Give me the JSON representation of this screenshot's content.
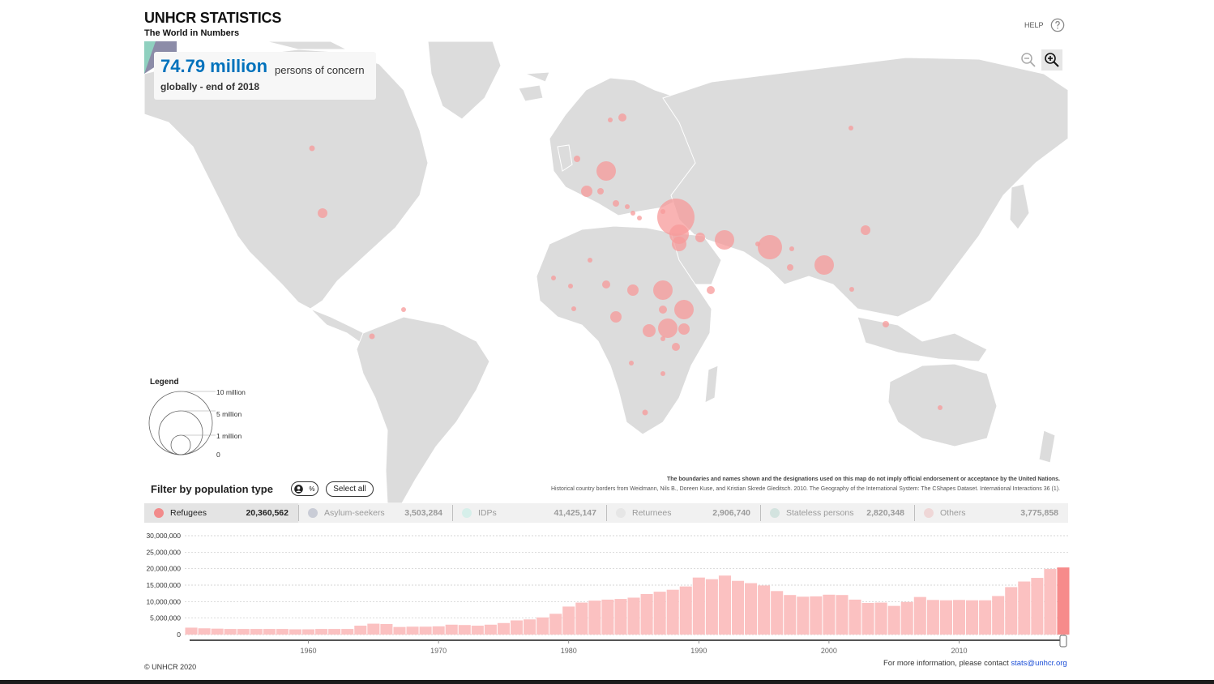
{
  "header": {
    "title": "UNHCR STATISTICS",
    "subtitle": "The World in Numbers"
  },
  "help": {
    "label": "HELP",
    "icon": "help-circle-icon"
  },
  "stat": {
    "value": "74.79 million",
    "unit": "persons of concern",
    "subtitle": "globally - end of 2018",
    "color": "#0072bc"
  },
  "zoom": {
    "out_icon": "zoom-out-icon",
    "in_icon": "zoom-in-icon"
  },
  "legend": {
    "title": "Legend",
    "labels": [
      "10 million",
      "5 million",
      "1 million",
      "0"
    ]
  },
  "disclaimer": {
    "line1": "The boundaries and names shown and the designations used on this map do not imply official endorsement or acceptance by the United Nations.",
    "line2": "Historical country borders from Weidmann, Nils B., Doreen Kuse, and Kristian Skrede Gleditsch. 2010. The Geography of the International System: The CShapes Dataset. International Interactions 36 (1)."
  },
  "filter": {
    "label": "Filter by population type",
    "toggle_left": "person-icon",
    "toggle_right": "%",
    "select_all": "Select all"
  },
  "population_types": [
    {
      "name": "Refugees",
      "value": "20,360,562",
      "color": "#f28b8b",
      "active": true
    },
    {
      "name": "Asylum-seekers",
      "value": "3,503,284",
      "color": "#c9ccd6",
      "active": false
    },
    {
      "name": "IDPs",
      "value": "41,425,147",
      "color": "#d6efea",
      "active": false
    },
    {
      "name": "Returnees",
      "value": "2,906,740",
      "color": "#e6e6e6",
      "active": false
    },
    {
      "name": "Stateless persons",
      "value": "2,820,348",
      "color": "#d3e3df",
      "active": false
    },
    {
      "name": "Others",
      "value": "3,775,858",
      "color": "#efd7d7",
      "active": false
    }
  ],
  "chart_data": {
    "type": "bar",
    "series_name": "Refugees",
    "x_start_year": 1951,
    "x_end_year": 2018,
    "x_ticks": [
      "1960",
      "1970",
      "1980",
      "1990",
      "2000",
      "2010"
    ],
    "y_ticks": [
      "30,000,000",
      "25,000,000",
      "20,000,000",
      "15,000,000",
      "10,000,000",
      "5,000,000",
      "0"
    ],
    "ylim": [
      0,
      30000000
    ],
    "values": [
      2100000,
      1900000,
      1800000,
      1700000,
      1700000,
      1700000,
      1700000,
      1700000,
      1600000,
      1600000,
      1700000,
      1700000,
      1700000,
      2700000,
      3300000,
      3200000,
      2300000,
      2400000,
      2400000,
      2500000,
      3000000,
      2900000,
      2700000,
      3000000,
      3500000,
      4300000,
      4600000,
      5200000,
      6300000,
      8500000,
      9700000,
      10300000,
      10600000,
      10800000,
      11200000,
      12300000,
      13000000,
      13600000,
      14600000,
      17300000,
      16800000,
      17900000,
      16300000,
      15600000,
      14900000,
      13200000,
      12000000,
      11500000,
      11600000,
      12100000,
      12000000,
      10600000,
      9600000,
      9700000,
      8700000,
      9900000,
      11400000,
      10500000,
      10400000,
      10500000,
      10400000,
      10400000,
      11700000,
      14400000,
      16100000,
      17200000,
      19900000,
      20360562
    ],
    "highlight_index": 67,
    "bar_color": "#fbc1c1",
    "highlight_color": "#f68b8b"
  },
  "footer": {
    "copyright": "© UNHCR  2020",
    "contact_text": "For more information, please contact ",
    "contact_link": "stats@unhcr.org"
  }
}
